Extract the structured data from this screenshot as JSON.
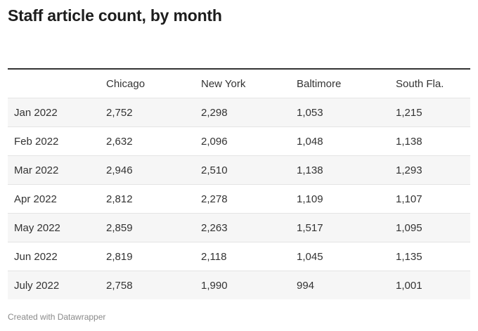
{
  "title": "Staff article count, by month",
  "footer": "Created with Datawrapper",
  "chart_data": {
    "type": "table",
    "title": "Staff article count, by month",
    "columns": [
      "",
      "Chicago",
      "New York",
      "Baltimore",
      "South Fla."
    ],
    "rows": [
      [
        "Jan 2022",
        "2,752",
        "2,298",
        "1,053",
        "1,215"
      ],
      [
        "Feb 2022",
        "2,632",
        "2,096",
        "1,048",
        "1,138"
      ],
      [
        "Mar 2022",
        "2,946",
        "2,510",
        "1,138",
        "1,293"
      ],
      [
        "Apr 2022",
        "2,812",
        "2,278",
        "1,109",
        "1,107"
      ],
      [
        "May 2022",
        "2,859",
        "2,263",
        "1,517",
        "1,095"
      ],
      [
        "Jun 2022",
        "2,819",
        "2,118",
        "1,045",
        "1,135"
      ],
      [
        "July 2022",
        "2,758",
        "1,990",
        "994",
        "1,001"
      ]
    ]
  }
}
